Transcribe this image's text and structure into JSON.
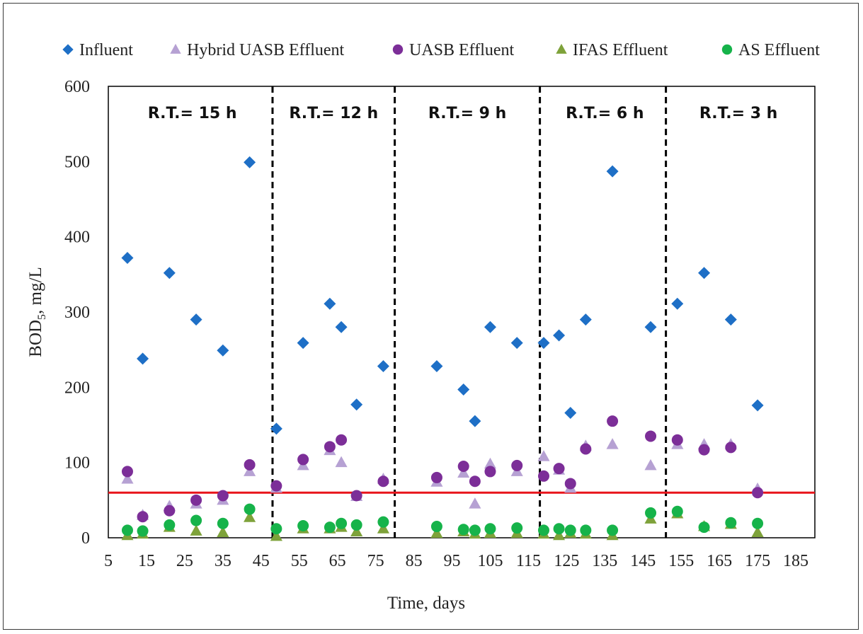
{
  "chart_data": {
    "type": "scatter",
    "xlabel": "Time, days",
    "ylabel_main": "BOD",
    "ylabel_sub": "5",
    "ylabel_rest": ", mg/L",
    "xlim": [
      5,
      190
    ],
    "ylim": [
      0,
      600
    ],
    "x_ticks": [
      5,
      15,
      25,
      35,
      45,
      55,
      65,
      75,
      85,
      95,
      105,
      115,
      125,
      135,
      145,
      155,
      165,
      175,
      185
    ],
    "y_ticks": [
      0,
      100,
      200,
      300,
      400,
      500,
      600
    ],
    "legend_position": "top",
    "reference_line": {
      "y": 60,
      "color": "#e8141b"
    },
    "phase_boundaries": [
      48,
      80,
      118,
      151
    ],
    "phases": [
      {
        "label": "R.T.= 15 h",
        "x_center": 27
      },
      {
        "label": "R.T.= 12 h",
        "x_center": 64
      },
      {
        "label": "R.T.= 9 h",
        "x_center": 99
      },
      {
        "label": "R.T.= 6 h",
        "x_center": 135
      },
      {
        "label": "R.T.= 3 h",
        "x_center": 170
      }
    ],
    "series": [
      {
        "name": "Influent",
        "marker": "diamond",
        "color": "#1e6fc6",
        "points": [
          [
            10,
            372
          ],
          [
            14,
            238
          ],
          [
            21,
            352
          ],
          [
            28,
            290
          ],
          [
            35,
            249
          ],
          [
            42,
            499
          ],
          [
            49,
            145
          ],
          [
            56,
            259
          ],
          [
            63,
            311
          ],
          [
            66,
            280
          ],
          [
            70,
            177
          ],
          [
            77,
            228
          ],
          [
            91,
            228
          ],
          [
            98,
            197
          ],
          [
            101,
            155
          ],
          [
            105,
            280
          ],
          [
            112,
            259
          ],
          [
            119,
            259
          ],
          [
            123,
            269
          ],
          [
            126,
            166
          ],
          [
            130,
            290
          ],
          [
            137,
            487
          ],
          [
            147,
            280
          ],
          [
            154,
            311
          ],
          [
            161,
            352
          ],
          [
            168,
            290
          ],
          [
            175,
            176
          ]
        ]
      },
      {
        "name": "Hybrid UASB Effluent",
        "marker": "triangle",
        "color": "#b6a1d3",
        "points": [
          [
            10,
            78
          ],
          [
            14,
            30
          ],
          [
            21,
            42
          ],
          [
            28,
            45
          ],
          [
            35,
            50
          ],
          [
            42,
            88
          ],
          [
            49,
            66
          ],
          [
            56,
            96
          ],
          [
            63,
            116
          ],
          [
            66,
            100
          ],
          [
            70,
            55
          ],
          [
            77,
            78
          ],
          [
            91,
            74
          ],
          [
            98,
            86
          ],
          [
            101,
            45
          ],
          [
            105,
            98
          ],
          [
            112,
            88
          ],
          [
            119,
            108
          ],
          [
            123,
            90
          ],
          [
            126,
            66
          ],
          [
            130,
            122
          ],
          [
            137,
            124
          ],
          [
            147,
            96
          ],
          [
            154,
            124
          ],
          [
            161,
            124
          ],
          [
            168,
            124
          ],
          [
            175,
            65
          ]
        ]
      },
      {
        "name": "UASB Effluent",
        "marker": "circle",
        "color": "#7c2e98",
        "points": [
          [
            10,
            88
          ],
          [
            14,
            28
          ],
          [
            21,
            36
          ],
          [
            28,
            50
          ],
          [
            35,
            56
          ],
          [
            42,
            97
          ],
          [
            49,
            69
          ],
          [
            56,
            104
          ],
          [
            63,
            121
          ],
          [
            66,
            130
          ],
          [
            70,
            56
          ],
          [
            77,
            75
          ],
          [
            91,
            80
          ],
          [
            98,
            95
          ],
          [
            101,
            75
          ],
          [
            105,
            88
          ],
          [
            112,
            96
          ],
          [
            119,
            82
          ],
          [
            123,
            92
          ],
          [
            126,
            72
          ],
          [
            130,
            118
          ],
          [
            137,
            155
          ],
          [
            147,
            135
          ],
          [
            154,
            130
          ],
          [
            161,
            117
          ],
          [
            168,
            120
          ],
          [
            175,
            60
          ]
        ]
      },
      {
        "name": "IFAS Effluent",
        "marker": "triangle",
        "color": "#7ea23a",
        "points": [
          [
            10,
            3
          ],
          [
            14,
            5
          ],
          [
            21,
            14
          ],
          [
            28,
            9
          ],
          [
            35,
            7
          ],
          [
            42,
            27
          ],
          [
            49,
            2
          ],
          [
            56,
            12
          ],
          [
            63,
            12
          ],
          [
            66,
            14
          ],
          [
            70,
            8
          ],
          [
            77,
            12
          ],
          [
            91,
            6
          ],
          [
            98,
            8
          ],
          [
            101,
            5
          ],
          [
            105,
            6
          ],
          [
            112,
            6
          ],
          [
            119,
            5
          ],
          [
            123,
            3
          ],
          [
            126,
            6
          ],
          [
            130,
            5
          ],
          [
            137,
            3
          ],
          [
            147,
            25
          ],
          [
            154,
            32
          ],
          [
            161,
            15
          ],
          [
            168,
            18
          ],
          [
            175,
            7
          ]
        ]
      },
      {
        "name": "AS Effluent",
        "marker": "circle",
        "color": "#16b34a",
        "points": [
          [
            10,
            10
          ],
          [
            14,
            9
          ],
          [
            21,
            17
          ],
          [
            28,
            23
          ],
          [
            35,
            19
          ],
          [
            42,
            38
          ],
          [
            49,
            12
          ],
          [
            56,
            16
          ],
          [
            63,
            14
          ],
          [
            66,
            19
          ],
          [
            70,
            17
          ],
          [
            77,
            21
          ],
          [
            91,
            15
          ],
          [
            98,
            11
          ],
          [
            101,
            10
          ],
          [
            105,
            12
          ],
          [
            112,
            13
          ],
          [
            119,
            10
          ],
          [
            123,
            12
          ],
          [
            126,
            10
          ],
          [
            130,
            10
          ],
          [
            137,
            10
          ],
          [
            147,
            33
          ],
          [
            154,
            35
          ],
          [
            161,
            14
          ],
          [
            168,
            20
          ],
          [
            175,
            19
          ]
        ]
      }
    ]
  }
}
